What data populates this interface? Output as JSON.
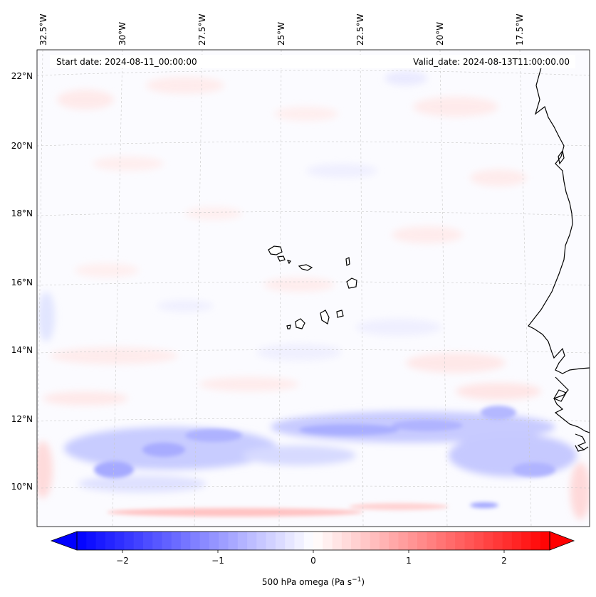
{
  "header": {
    "start_date": "Start date: 2024-08-11_00:00:00",
    "valid_date": "Valid_date: 2024-08-13T11:00:00.00"
  },
  "map": {
    "lon_labels": [
      "32.5°W",
      "30°W",
      "27.5°W",
      "25°W",
      "22.5°W",
      "20°W",
      "17.5°W"
    ],
    "lat_labels": [
      "22°N",
      "20°N",
      "18°N",
      "16°N",
      "14°N",
      "12°N",
      "10°N"
    ]
  },
  "colorbar": {
    "ticks": [
      "−2",
      "−1",
      "0",
      "1",
      "2"
    ],
    "label_main": "500 hPa omega (Pa s",
    "label_sup": "−1",
    "label_end": ")",
    "range": [
      -2.6,
      2.6
    ]
  },
  "colors": {
    "negative": "#0000ff",
    "positive": "#ff0000",
    "neutral": "#ffffff"
  }
}
